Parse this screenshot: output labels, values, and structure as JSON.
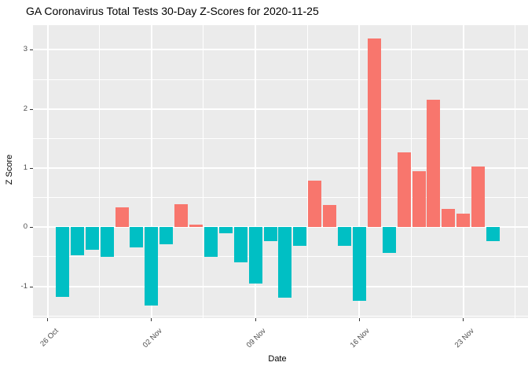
{
  "chart_data": {
    "type": "bar",
    "title": "GA Coronavirus Total Tests 30-Day Z-Scores for 2020-11-25",
    "xlabel": "Date",
    "ylabel": "Z Score",
    "categories": [
      "27 Oct",
      "28 Oct",
      "29 Oct",
      "30 Oct",
      "31 Oct",
      "01 Nov",
      "02 Nov",
      "03 Nov",
      "04 Nov",
      "05 Nov",
      "06 Nov",
      "07 Nov",
      "08 Nov",
      "09 Nov",
      "10 Nov",
      "11 Nov",
      "12 Nov",
      "13 Nov",
      "14 Nov",
      "15 Nov",
      "16 Nov",
      "17 Nov",
      "18 Nov",
      "19 Nov",
      "20 Nov",
      "21 Nov",
      "22 Nov",
      "23 Nov",
      "24 Nov",
      "25 Nov"
    ],
    "values": [
      -1.18,
      -0.47,
      -0.38,
      -0.5,
      0.33,
      -0.34,
      -1.33,
      -0.29,
      0.39,
      0.04,
      -0.5,
      -0.1,
      -0.6,
      -0.95,
      -0.24,
      -1.19,
      -0.32,
      0.79,
      0.37,
      -0.32,
      -1.24,
      3.19,
      -0.44,
      1.26,
      0.95,
      2.15,
      0.31,
      0.23,
      1.02,
      -0.24
    ],
    "xticks": [
      {
        "label": "26 Oct",
        "day_offset": 0
      },
      {
        "label": "02 Nov",
        "day_offset": 7
      },
      {
        "label": "09 Nov",
        "day_offset": 14
      },
      {
        "label": "16 Nov",
        "day_offset": 21
      },
      {
        "label": "23 Nov",
        "day_offset": 28
      }
    ],
    "yticks": [
      -1,
      0,
      1,
      2,
      3
    ],
    "ylim": [
      -1.52,
      3.42
    ],
    "grid": "on",
    "legend": "none",
    "colors": {
      "positive": "#F8766D",
      "negative": "#00BFC4",
      "panel_bg": "#EBEBEB",
      "grid": "#FFFFFF",
      "axis_text": "#4D4D4D",
      "tick_mark": "#333333",
      "title_text": "#000000"
    }
  }
}
